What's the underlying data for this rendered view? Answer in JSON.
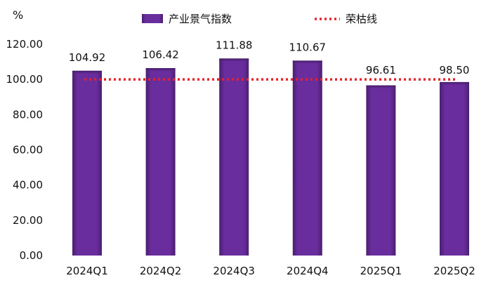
{
  "chart_data": {
    "type": "bar",
    "unit_label": "%",
    "categories": [
      "2024Q1",
      "2024Q2",
      "2024Q3",
      "2024Q4",
      "2025Q1",
      "2025Q2"
    ],
    "series": [
      {
        "name": "产业景气指数",
        "values": [
          104.92,
          106.42,
          111.88,
          110.67,
          96.61,
          98.5
        ],
        "color": "#6a2d9e"
      }
    ],
    "reference_line": {
      "name": "荣枯线",
      "value": 100,
      "color": "#e8202a"
    },
    "ylim": [
      0,
      120
    ],
    "yticks": [
      "0.00",
      "20.00",
      "40.00",
      "60.00",
      "80.00",
      "100.00",
      "120.00"
    ],
    "data_labels": [
      "104.92",
      "106.42",
      "111.88",
      "110.67",
      "96.61",
      "98.50"
    ],
    "grid": false,
    "legend_position": "top-center"
  }
}
